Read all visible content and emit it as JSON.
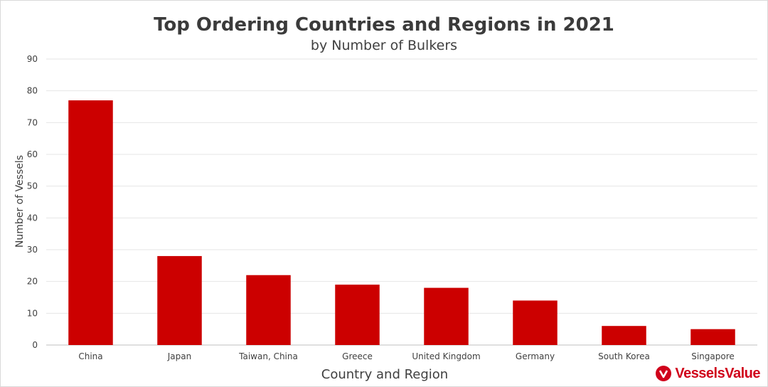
{
  "chart_data": {
    "type": "bar",
    "title": "Top Ordering Countries and Regions in 2021",
    "subtitle": "by Number of Bulkers",
    "xlabel": "Country and Region",
    "ylabel": "Number of Vessels",
    "categories": [
      "China",
      "Japan",
      "Taiwan, China",
      "Greece",
      "United Kingdom",
      "Germany",
      "South Korea",
      "Singapore"
    ],
    "values": [
      77,
      28,
      22,
      19,
      18,
      14,
      6,
      5
    ],
    "ylim": [
      0,
      90
    ],
    "yticks": [
      0,
      10,
      20,
      30,
      40,
      50,
      60,
      70,
      80,
      90
    ],
    "grid": true,
    "legend": "none",
    "bar_color": "#cc0000"
  },
  "branding": {
    "logo_text": "VesselsValue",
    "logo_icon": "vesselsvalue-logo-icon",
    "logo_color": "#d0021b"
  }
}
